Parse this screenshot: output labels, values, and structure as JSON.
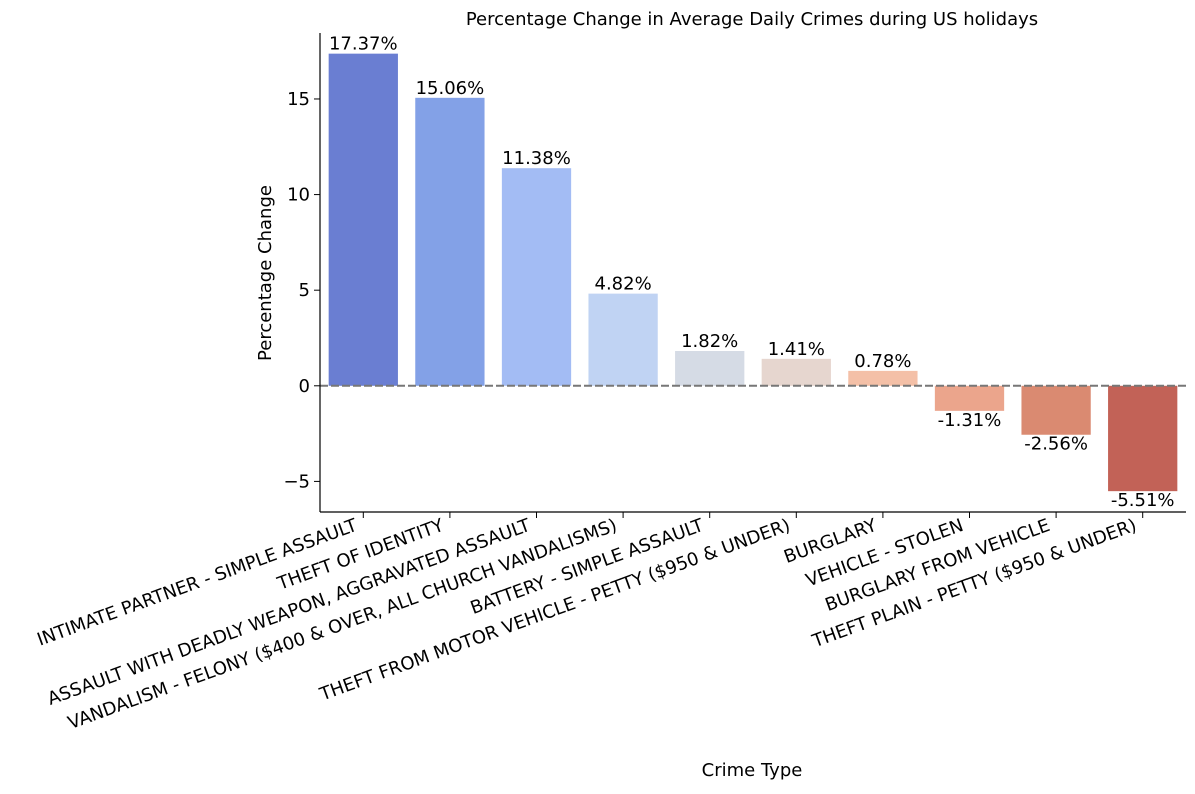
{
  "chart_data": {
    "type": "bar",
    "title": "Percentage Change in Average Daily Crimes during US holidays",
    "xlabel": "Crime Type",
    "ylabel": "Percentage Change",
    "categories": [
      "INTIMATE PARTNER - SIMPLE ASSAULT",
      "THEFT OF IDENTITY",
      "ASSAULT WITH DEADLY WEAPON, AGGRAVATED ASSAULT",
      "VANDALISM - FELONY ($400 & OVER, ALL CHURCH VANDALISMS)",
      "BATTERY - SIMPLE ASSAULT",
      "THEFT FROM MOTOR VEHICLE - PETTY ($950 & UNDER)",
      "BURGLARY",
      "VEHICLE - STOLEN",
      "BURGLARY FROM VEHICLE",
      "THEFT PLAIN - PETTY ($950 & UNDER)"
    ],
    "values": [
      17.37,
      15.06,
      11.38,
      4.82,
      1.82,
      1.41,
      0.78,
      -1.31,
      -2.56,
      -5.51
    ],
    "value_labels": [
      "17.37%",
      "15.06%",
      "11.38%",
      "4.82%",
      "1.82%",
      "1.41%",
      "0.78%",
      "-1.31%",
      "-2.56%",
      "-5.51%"
    ],
    "colors": [
      "#6a7ed2",
      "#83a1e7",
      "#a3bcf4",
      "#c0d3f3",
      "#d5dbe5",
      "#e6d6cf",
      "#f4c0a7",
      "#eba58c",
      "#da8a71",
      "#c26257"
    ],
    "ylim": [
      -6.6,
      18.45
    ],
    "yticks": [
      -5,
      0,
      5,
      10,
      15
    ],
    "ytick_labels": [
      "−5",
      "0",
      "5",
      "10",
      "15"
    ],
    "reference_line": {
      "y": 0,
      "style": "dashed",
      "color": "#777777"
    },
    "grid": false
  }
}
